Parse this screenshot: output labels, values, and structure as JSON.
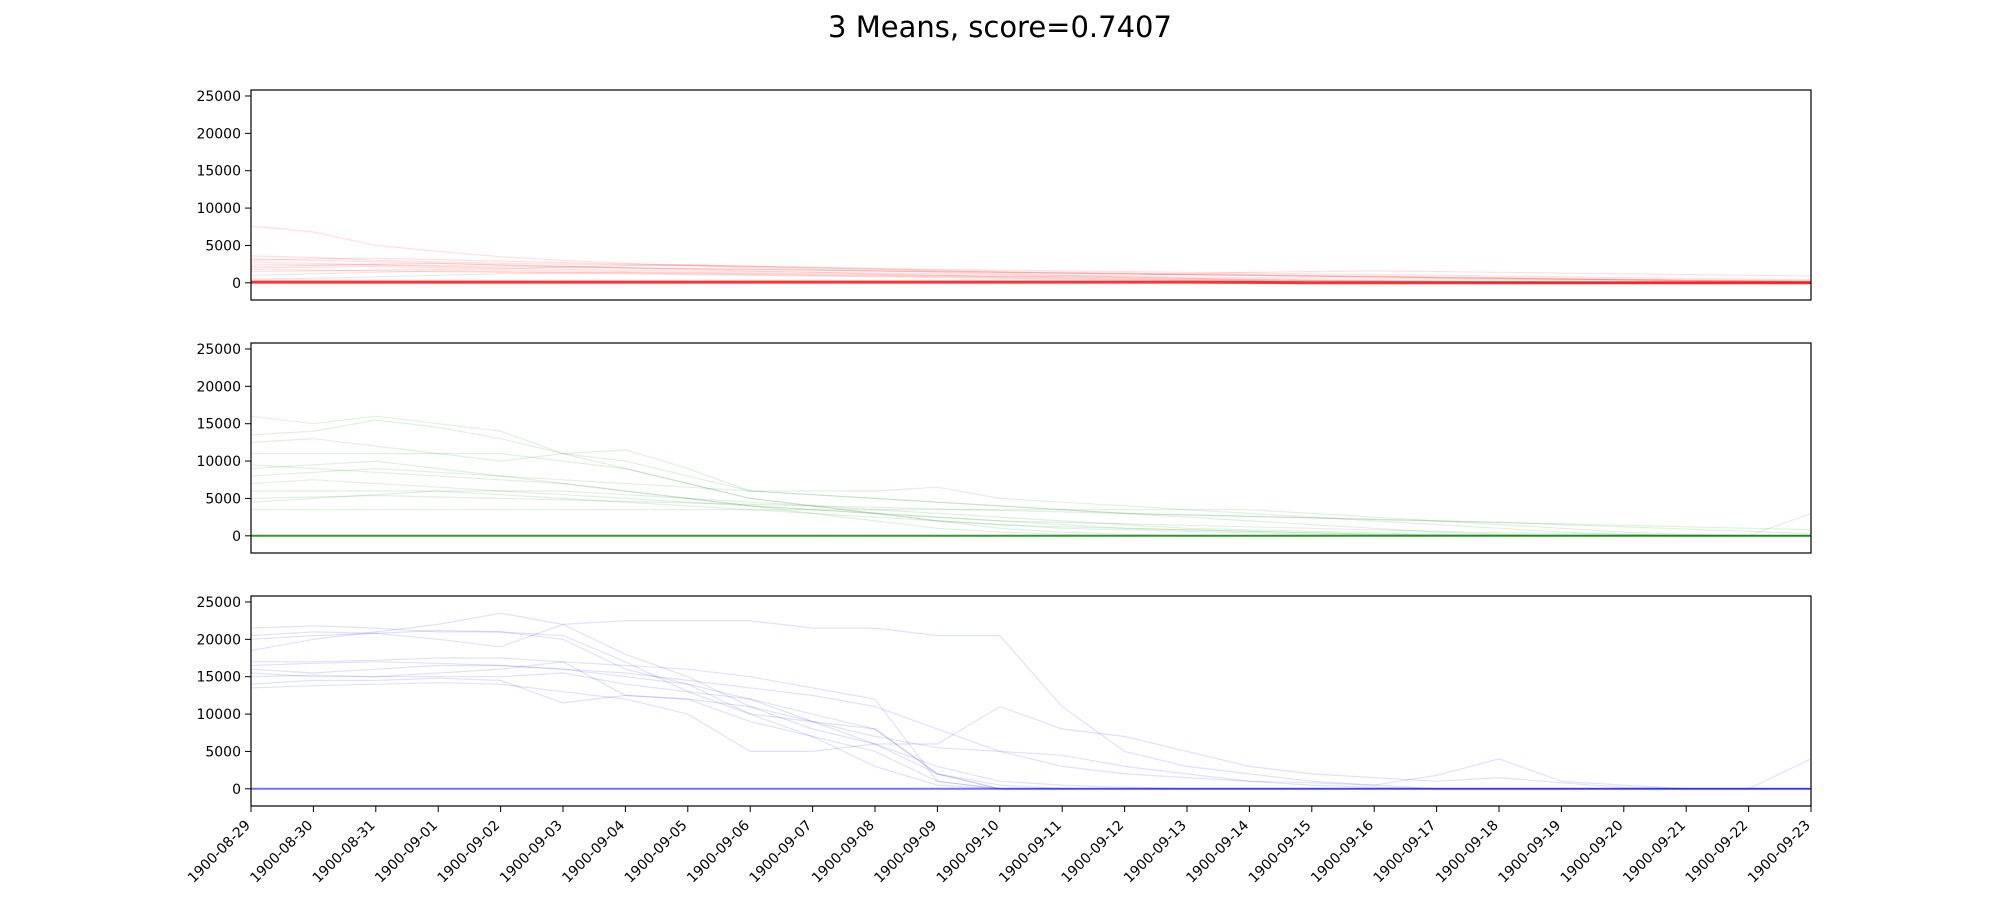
{
  "title": "3 Means, score=0.7407",
  "chart_data": {
    "type": "line",
    "title": "3 Means, score=0.7407",
    "x_dates": [
      "1900-08-29",
      "1900-08-30",
      "1900-08-31",
      "1900-09-01",
      "1900-09-02",
      "1900-09-03",
      "1900-09-04",
      "1900-09-05",
      "1900-09-06",
      "1900-09-07",
      "1900-09-08",
      "1900-09-09",
      "1900-09-10",
      "1900-09-11",
      "1900-09-12",
      "1900-09-13",
      "1900-09-14",
      "1900-09-15",
      "1900-09-16",
      "1900-09-17",
      "1900-09-18",
      "1900-09-19",
      "1900-09-20",
      "1900-09-21",
      "1900-09-22",
      "1900-09-23"
    ],
    "ylim": [
      -2300,
      25800
    ],
    "yticks": [
      0,
      5000,
      10000,
      15000,
      20000,
      25000
    ],
    "grid": false,
    "panels": [
      {
        "color": "#ff0000",
        "centroid": [
          100,
          100,
          100,
          100,
          100,
          100,
          100,
          100,
          100,
          100,
          100,
          100,
          100,
          100,
          100,
          100,
          50,
          0,
          0,
          0,
          0,
          0,
          0,
          0,
          0,
          0
        ],
        "members": [
          [
            7600,
            6800,
            5000,
            4200,
            3500,
            3000,
            2600,
            2300,
            2000,
            1800,
            1600,
            1400,
            1200,
            1000,
            800,
            600,
            400,
            300,
            250,
            200,
            150,
            100,
            80,
            50,
            30,
            0
          ],
          [
            3600,
            3400,
            3000,
            2800,
            2600,
            2500,
            2400,
            2300,
            2200,
            2000,
            1900,
            1700,
            1500,
            1400,
            1300,
            1200,
            1100,
            1000,
            900,
            800,
            700,
            600,
            500,
            400,
            300,
            200
          ],
          [
            3000,
            3200,
            3300,
            3100,
            2900,
            2700,
            2500,
            2400,
            2200,
            2100,
            1900,
            1800,
            1700,
            1600,
            1500,
            1400,
            1300,
            1200,
            1100,
            1000,
            900,
            800,
            700,
            600,
            500,
            400
          ],
          [
            2500,
            2400,
            2500,
            2600,
            2400,
            2200,
            2000,
            1800,
            1600,
            1400,
            1200,
            1000,
            900,
            800,
            700,
            600,
            500,
            400,
            300,
            200,
            100,
            50,
            0,
            0,
            0,
            0
          ],
          [
            2000,
            2100,
            2200,
            2000,
            1900,
            2100,
            2300,
            2400,
            2200,
            2000,
            1800,
            1600,
            1400,
            1300,
            1200,
            1100,
            1000,
            900,
            800,
            700,
            600,
            500,
            400,
            300,
            200,
            100
          ],
          [
            1500,
            1600,
            1700,
            1800,
            1700,
            1600,
            1500,
            1400,
            1300,
            1200,
            1100,
            1000,
            900,
            850,
            800,
            750,
            700,
            650,
            600,
            550,
            500,
            450,
            400,
            350,
            300,
            250
          ],
          [
            1000,
            1200,
            1400,
            1600,
            1500,
            1400,
            1300,
            1200,
            1100,
            1000,
            900,
            800,
            700,
            600,
            500,
            400,
            300,
            200,
            150,
            100,
            50,
            0,
            0,
            0,
            0,
            0
          ],
          [
            500,
            600,
            800,
            1000,
            1200,
            1300,
            1400,
            1300,
            1200,
            1100,
            1000,
            900,
            800,
            700,
            600,
            500,
            400,
            300,
            200,
            100,
            0,
            0,
            0,
            0,
            0,
            0
          ],
          [
            2800,
            2600,
            2400,
            2200,
            2000,
            1800,
            1700,
            1600,
            1500,
            1400,
            1300,
            1200,
            1100,
            1000,
            1000,
            1200,
            1400,
            1500,
            1600,
            1500,
            1400,
            1300,
            1200,
            1100,
            1000,
            900
          ],
          [
            3200,
            3000,
            2800,
            2600,
            2400,
            2200,
            2000,
            1900,
            1800,
            1700,
            1600,
            1500,
            1400,
            1300,
            1200,
            1100,
            1000,
            900,
            800,
            700,
            600,
            500,
            400,
            300,
            200,
            100
          ],
          [
            1800,
            1700,
            1600,
            1500,
            1400,
            1300,
            1200,
            1100,
            1000,
            900,
            800,
            700,
            600,
            500,
            400,
            300,
            200,
            100,
            50,
            0,
            0,
            0,
            0,
            0,
            0,
            0
          ],
          [
            2200,
            2300,
            2400,
            2300,
            2200,
            2100,
            2000,
            1900,
            1800,
            1700,
            1600,
            1500,
            1400,
            1300,
            1200,
            1100,
            1000,
            900,
            800,
            700,
            600,
            500,
            400,
            300,
            200,
            100
          ]
        ]
      },
      {
        "color": "#008000",
        "centroid": [
          0,
          0,
          0,
          0,
          0,
          0,
          0,
          0,
          0,
          0,
          0,
          0,
          0,
          0,
          0,
          0,
          0,
          0,
          0,
          0,
          0,
          0,
          0,
          0,
          0,
          0
        ],
        "members": [
          [
            16000,
            15000,
            16000,
            15000,
            14000,
            11000,
            10000,
            8000,
            6000,
            5500,
            5000,
            4500,
            4000,
            3500,
            3000,
            2500,
            2000,
            1500,
            1000,
            500,
            200,
            100,
            50,
            0,
            0,
            0
          ],
          [
            13500,
            14000,
            15500,
            14500,
            13000,
            11000,
            9000,
            7000,
            5000,
            4000,
            3000,
            2000,
            1500,
            1200,
            1000,
            800,
            600,
            400,
            200,
            100,
            50,
            0,
            0,
            0,
            0,
            0
          ],
          [
            12500,
            13000,
            12000,
            11000,
            10000,
            11000,
            11500,
            9000,
            6000,
            6000,
            6000,
            6500,
            5000,
            4500,
            4000,
            3500,
            3000,
            2500,
            2000,
            1500,
            1000,
            500,
            200,
            0,
            0,
            0
          ],
          [
            11000,
            11000,
            11000,
            11000,
            11000,
            10000,
            9000,
            7000,
            5000,
            4000,
            3000,
            2000,
            1000,
            500,
            200,
            0,
            0,
            0,
            0,
            0,
            0,
            0,
            0,
            0,
            0,
            0
          ],
          [
            9000,
            9500,
            10000,
            9000,
            8000,
            7000,
            6000,
            5000,
            4000,
            3500,
            3000,
            2500,
            2000,
            1500,
            1000,
            800,
            600,
            400,
            200,
            100,
            50,
            0,
            0,
            0,
            0,
            0
          ],
          [
            8000,
            8500,
            9000,
            8500,
            8000,
            7500,
            7000,
            6500,
            6000,
            5500,
            5000,
            4500,
            4000,
            3500,
            3000,
            2800,
            2600,
            2400,
            2200,
            2000,
            1800,
            1500,
            1200,
            900,
            600,
            300
          ],
          [
            7000,
            7500,
            7000,
            6500,
            6000,
            5500,
            5000,
            4500,
            4000,
            3500,
            3000,
            2500,
            2000,
            1800,
            1600,
            1400,
            1200,
            1000,
            800,
            600,
            400,
            300,
            200,
            100,
            50,
            0
          ],
          [
            6000,
            6000,
            6000,
            6000,
            6000,
            6000,
            5500,
            5000,
            4500,
            4000,
            3500,
            3000,
            2500,
            2000,
            1500,
            1000,
            800,
            600,
            400,
            200,
            100,
            0,
            0,
            0,
            0,
            0
          ],
          [
            5000,
            5200,
            5400,
            5200,
            5000,
            4800,
            4600,
            4400,
            4200,
            4000,
            3800,
            3600,
            3400,
            3200,
            3000,
            2800,
            2600,
            2400,
            2200,
            2000,
            1800,
            1600,
            1400,
            1200,
            1000,
            800
          ],
          [
            3500,
            3500,
            3500,
            3500,
            3500,
            3500,
            3500,
            3500,
            3500,
            3500,
            3500,
            3500,
            3500,
            3500,
            3500,
            3500,
            3500,
            3000,
            2500,
            2000,
            1500,
            1000,
            500,
            200,
            0,
            0
          ],
          [
            9500,
            9000,
            8500,
            8000,
            7500,
            7000,
            6000,
            5000,
            4000,
            3000,
            2000,
            1000,
            500,
            200,
            0,
            0,
            0,
            0,
            0,
            0,
            0,
            0,
            0,
            0,
            0,
            3000
          ],
          [
            4500,
            5000,
            5500,
            6000,
            5500,
            5000,
            4500,
            4000,
            3500,
            3000,
            2500,
            2000,
            1500,
            1000,
            800,
            600,
            400,
            200,
            100,
            0,
            0,
            0,
            0,
            0,
            0,
            0
          ]
        ]
      },
      {
        "color": "#0000ff",
        "centroid": [
          0,
          0,
          0,
          0,
          0,
          0,
          0,
          0,
          0,
          0,
          0,
          0,
          0,
          0,
          0,
          0,
          0,
          0,
          0,
          0,
          0,
          0,
          0,
          0,
          0,
          0
        ],
        "members": [
          [
            21500,
            21800,
            21500,
            21000,
            21000,
            20000,
            16000,
            14000,
            12000,
            10000,
            8000,
            2000,
            500,
            0,
            0,
            0,
            0,
            0,
            0,
            0,
            0,
            0,
            0,
            0,
            0,
            0
          ],
          [
            20500,
            21000,
            20800,
            21200,
            21000,
            20500,
            17000,
            13000,
            10000,
            7000,
            3000,
            500,
            0,
            0,
            0,
            0,
            0,
            0,
            0,
            0,
            0,
            0,
            0,
            0,
            0,
            0
          ],
          [
            18500,
            20000,
            21000,
            22000,
            23500,
            22000,
            18000,
            15000,
            11000,
            9000,
            7000,
            5500,
            5000,
            4500,
            3000,
            2000,
            1000,
            500,
            200,
            0,
            0,
            0,
            0,
            0,
            0,
            0
          ],
          [
            20000,
            20500,
            20800,
            20000,
            19000,
            22000,
            22500,
            22500,
            22500,
            21500,
            21500,
            20500,
            20500,
            11000,
            5000,
            3000,
            2000,
            1000,
            500,
            0,
            0,
            0,
            0,
            0,
            0,
            0
          ],
          [
            17000,
            17000,
            17200,
            17500,
            17500,
            17000,
            16500,
            16000,
            15000,
            13500,
            12000,
            1000,
            0,
            0,
            0,
            0,
            0,
            0,
            0,
            0,
            0,
            0,
            0,
            0,
            0,
            0
          ],
          [
            16000,
            15500,
            16000,
            16500,
            16500,
            16000,
            15000,
            14000,
            10000,
            9000,
            8000,
            2000,
            0,
            0,
            0,
            0,
            0,
            0,
            0,
            0,
            0,
            0,
            0,
            0,
            0,
            0
          ],
          [
            15000,
            15200,
            15000,
            15500,
            16000,
            17000,
            12500,
            12000,
            9000,
            7000,
            5000,
            1000,
            0,
            0,
            0,
            0,
            0,
            0,
            0,
            0,
            0,
            0,
            0,
            0,
            0,
            0
          ],
          [
            14000,
            14500,
            14500,
            14800,
            14500,
            11500,
            12500,
            12000,
            11000,
            8000,
            6000,
            3000,
            1000,
            500,
            200,
            0,
            0,
            0,
            0,
            0,
            0,
            0,
            0,
            0,
            0,
            0
          ],
          [
            13500,
            13800,
            14000,
            14200,
            14000,
            13000,
            12000,
            10000,
            5000,
            5000,
            6000,
            6000,
            11000,
            8000,
            7000,
            5000,
            3000,
            2000,
            1500,
            1000,
            1500,
            800,
            200,
            0,
            0,
            4000
          ],
          [
            15500,
            15000,
            15000,
            15000,
            15000,
            15500,
            14000,
            13000,
            12000,
            9000,
            6000,
            2000,
            0,
            0,
            0,
            0,
            0,
            0,
            0,
            0,
            0,
            0,
            0,
            0,
            0,
            0
          ],
          [
            16500,
            16800,
            17000,
            16800,
            16500,
            16000,
            15500,
            14500,
            13500,
            12500,
            11000,
            8000,
            5000,
            3000,
            2000,
            1500,
            1000,
            800,
            500,
            1800,
            4000,
            1000,
            500,
            0,
            0,
            0
          ]
        ]
      }
    ]
  }
}
